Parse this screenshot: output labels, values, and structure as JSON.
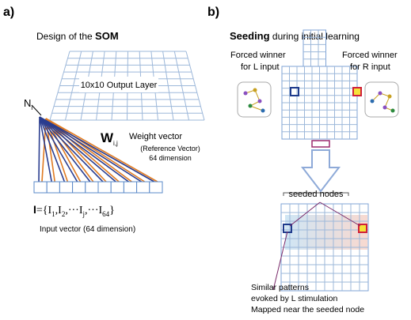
{
  "panel_a": {
    "label": "a)",
    "title_plain": "Design of the ",
    "title_bold": "SOM",
    "node_label": "N",
    "node_sub": "i",
    "layer_label": "10x10 Output Layer",
    "weight_symbol": "W",
    "weight_sub": "i,j",
    "weight_text": "Weight vector",
    "weight_note": "(Reference Vector)",
    "weight_dim": "64 dimension",
    "formula_parts": [
      "I",
      "={I",
      "1",
      ",I",
      "2",
      ",···I",
      "j",
      ",···I",
      "64",
      "}"
    ],
    "input_caption": "Input vector (64 dimension)"
  },
  "panel_b": {
    "label": "b)",
    "title_bold": "Seeding",
    "title_plain": " during initial learning",
    "left_label": [
      "Forced winner",
      "for  L input"
    ],
    "right_label": [
      "Forced winner",
      "for  R input"
    ],
    "seeded_label": "seeded nodes",
    "caption": [
      "Similar patterns",
      "evoked by L stimulation",
      "Mapped near the seeded node"
    ]
  }
}
